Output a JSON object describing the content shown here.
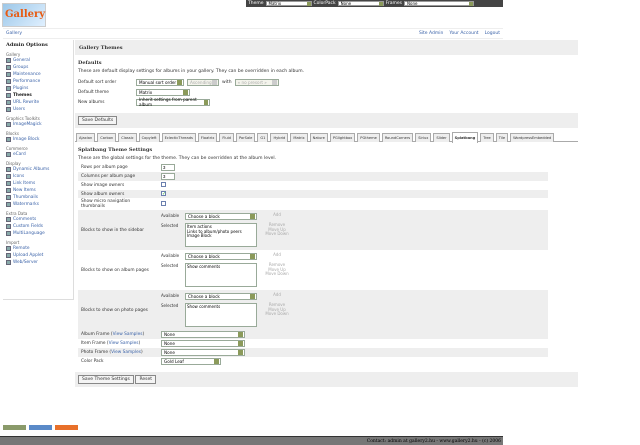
{
  "topbar": {
    "theme_label": "Theme",
    "theme_value": "Matrix",
    "colorpack_label": "ColorPack",
    "colorpack_value": "None",
    "frames_label": "Frames",
    "frames_value": "None"
  },
  "logo_text": "Gallery",
  "breadcrumb": "Gallery",
  "header_links": [
    "Site Admin",
    "Your Account",
    "Logout"
  ],
  "sidebar": {
    "title": "Admin Options",
    "groups": [
      {
        "name": "Gallery",
        "items": [
          "General",
          "Groups",
          "Maintenance",
          "Performance",
          "Plugins",
          "Themes",
          "URL Rewrite",
          "Users"
        ]
      },
      {
        "name": "Graphics Toolkits",
        "items": [
          "ImageMagick"
        ]
      },
      {
        "name": "Blocks",
        "items": [
          "Image Block"
        ]
      },
      {
        "name": "Commerce",
        "items": [
          "eCard"
        ]
      },
      {
        "name": "Display",
        "items": [
          "Dynamic Albums",
          "Icons",
          "Link Items",
          "New Items",
          "Thumbnails",
          "Watermarks"
        ]
      },
      {
        "name": "Extra Data",
        "items": [
          "Comments",
          "Custom Fields",
          "MultiLanguage"
        ]
      },
      {
        "name": "Import",
        "items": [
          "Remote",
          "Upload Applet",
          "Web/Server"
        ]
      }
    ],
    "current": "Themes"
  },
  "main": {
    "title": "Gallery Themes",
    "defaults": {
      "heading": "Defaults",
      "desc": "These are default display settings for albums in your gallery. They can be overridden in each album.",
      "sort_label": "Default sort order",
      "sort_value": "Manual sort order",
      "sort_dir": "Ascending",
      "with_label": "with",
      "presort": "« no presort »",
      "theme_label": "Default theme",
      "theme_value": "Matrix",
      "new_label": "New albums",
      "new_value": "Inherit settings from parent album",
      "save": "Save Defaults"
    },
    "tabs": [
      "Ajaxian",
      "Carbon",
      "Classic",
      "Copyleft",
      "EclecticThreads",
      "Floatrix",
      "Fluid",
      "PorSale",
      "G1",
      "Hybrid",
      "Matrix",
      "Nature",
      "PGlightbox",
      "PGtheme",
      "RoundCorners",
      "Siriux",
      "Slider",
      "Splatbang",
      "Tree",
      "Tile",
      "WordpressEmbedded"
    ],
    "active_tab": "Splatbang",
    "theme": {
      "heading": "Splatbang Theme Settings",
      "desc": "These are the global settings for the theme. They can be overridden at the album level.",
      "rows_label": "Rows per album page",
      "rows": "3",
      "cols_label": "Columns per album page",
      "cols": "3",
      "img_owners_label": "Show image owners",
      "img_owners": false,
      "alb_owners_label": "Show album owners",
      "alb_owners": true,
      "micro_label": "Show micro navigation thumbnails",
      "micro": false,
      "available": "Available",
      "selected": "Selected",
      "choose": "Choose a block",
      "add": "Add",
      "remove": "Remove",
      "up": "Move Up",
      "down": "Move Down",
      "blocks": [
        {
          "label": "Blocks to show in the sidebar",
          "items": [
            "Item actions",
            "Links to album/photo peers",
            "Image Block"
          ]
        },
        {
          "label": "Blocks to show on album pages",
          "items": [
            "Show comments"
          ]
        },
        {
          "label": "Blocks to show on photo pages",
          "items": [
            "Show comments"
          ]
        }
      ],
      "view_samples": "View Samples",
      "frames": [
        {
          "label": "Album Frame",
          "value": "None"
        },
        {
          "label": "Item Frame",
          "value": "None"
        },
        {
          "label": "Photo Frame",
          "value": "None"
        }
      ],
      "colorpack_label": "Color Pack",
      "colorpack_value": "Gold Leaf",
      "save": "Save Theme Settings",
      "reset": "Reset"
    }
  },
  "footer": "Contact: admin at gallery2.hu - www.gallery2.hu - (c) 2006"
}
